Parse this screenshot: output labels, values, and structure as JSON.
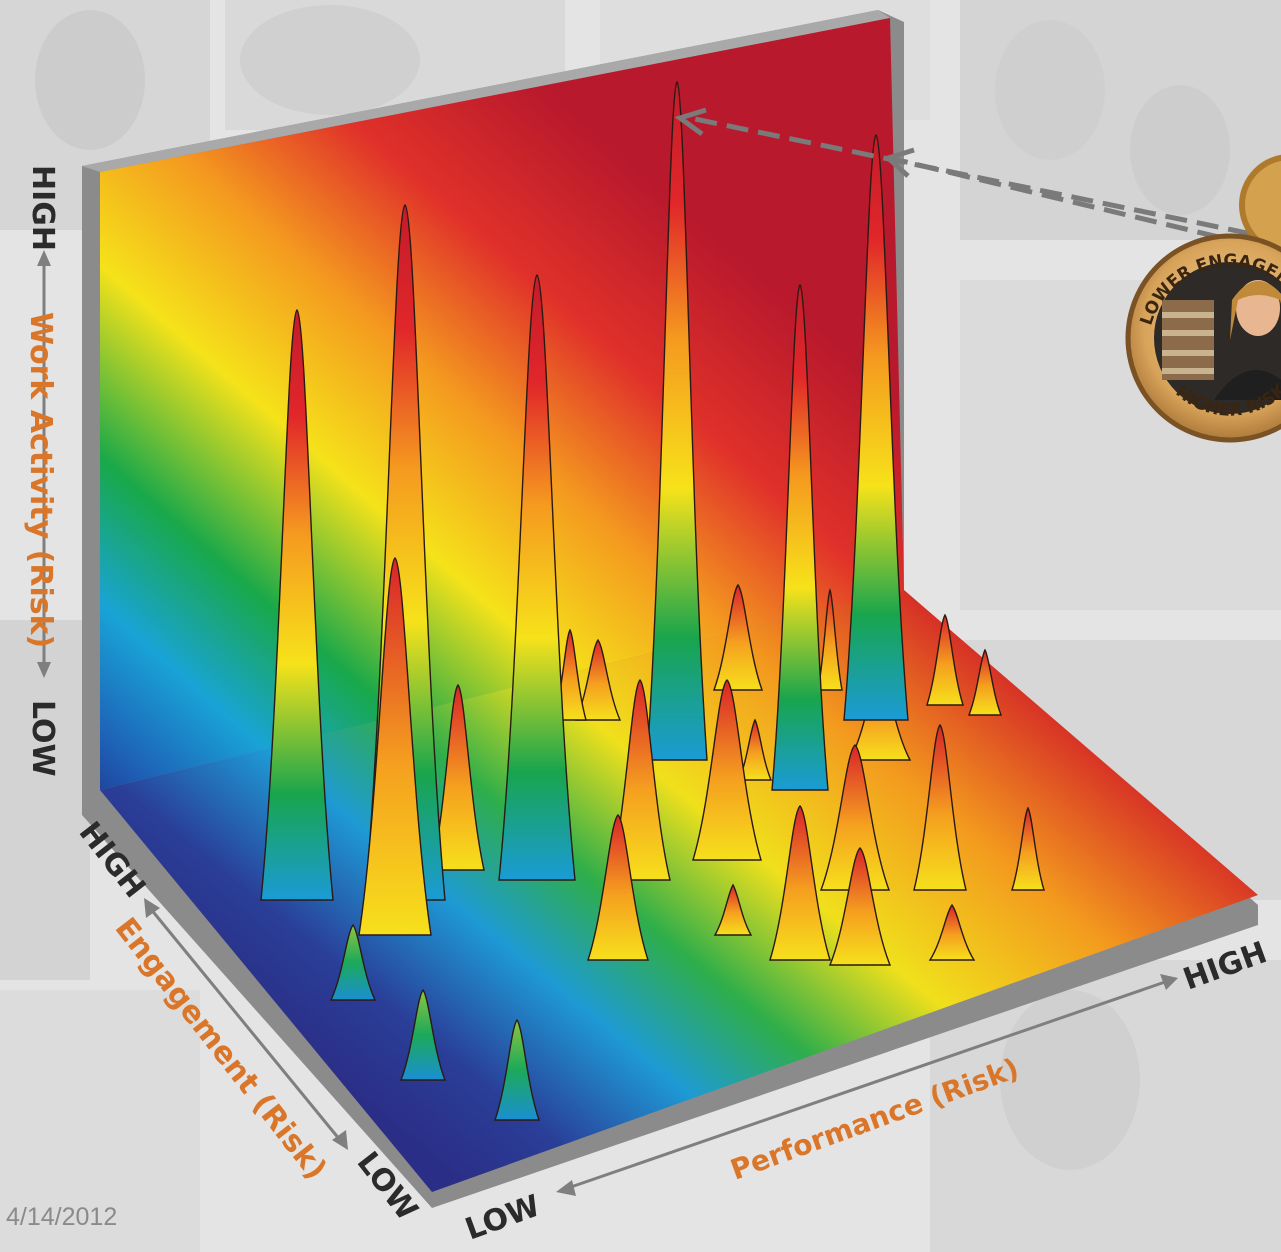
{
  "date": "4/14/2012",
  "badge": {
    "top_text": "LOWER ENGAGEMENT",
    "bottom_text": "HIGHER RISK"
  },
  "colors": {
    "axis_title": "#d9762a",
    "axis_end": "#2b2b2b",
    "frame": "#8b8b8b",
    "arrow": "#808080",
    "badge_ring": "#a4763a"
  },
  "chart_data": {
    "type": "3d-surface",
    "title": "",
    "axes": {
      "vertical": {
        "label": "Work Activity (Risk)",
        "low": "LOW",
        "high": "HIGH"
      },
      "depth": {
        "label": "Engagement (Risk)",
        "low": "LOW",
        "high": "HIGH"
      },
      "horizontal": {
        "label": "Performance (Risk)",
        "low": "LOW",
        "high": "HIGH"
      }
    },
    "colorscale": [
      "#22318c",
      "#1d9ad6",
      "#19a84a",
      "#f5e21a",
      "#f49a1f",
      "#d82327",
      "#b3182b"
    ],
    "grid": false,
    "legend": "none"
  }
}
